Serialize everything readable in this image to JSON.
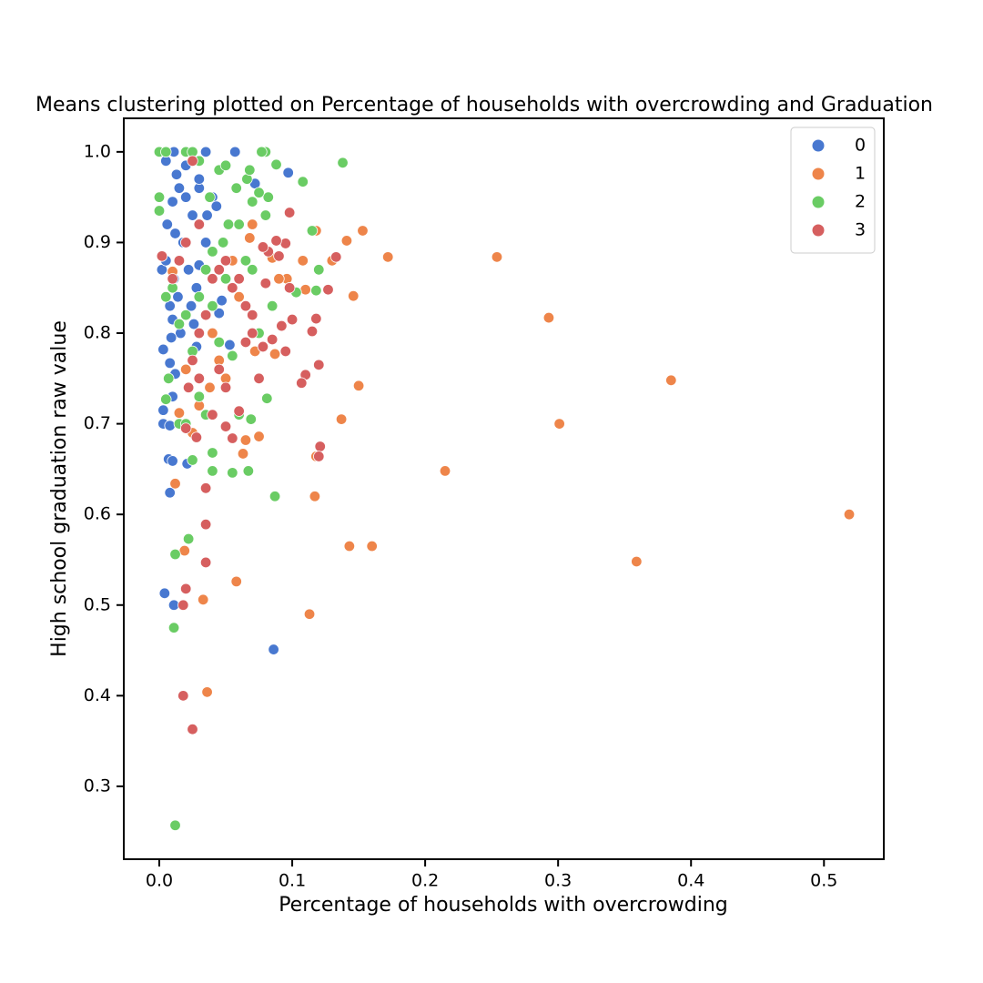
{
  "chart_data": {
    "type": "scatter",
    "title": "Means clustering plotted on Percentage of households with overcrowding and Graduation",
    "x_label": "Percentage of households with overcrowding",
    "y_label": "High school graduation raw value",
    "xlim": [
      -0.0267,
      0.545
    ],
    "ylim": [
      0.2196,
      1.037
    ],
    "xticks": [
      {
        "value": 0,
        "label": "0.0"
      },
      0.1,
      0.2,
      0.3,
      0.4,
      0.5
    ],
    "yticks": [
      0.3,
      0.4,
      0.5,
      0.6,
      0.7,
      0.8,
      0.9,
      {
        "value": 1,
        "label": "1.0"
      }
    ],
    "grid": false,
    "legend": "upper right",
    "series": [
      {
        "name": "0",
        "color": "#4878d0",
        "x": [
          0.097,
          0.057,
          0.035,
          0.011,
          0.003,
          0.003,
          0.008,
          0.007,
          0.01,
          0.021,
          0.008,
          0.004,
          0.011,
          0.086,
          0.053,
          0.047,
          0.045,
          0.072,
          0.002,
          0.005,
          0.01,
          0.003,
          0.02,
          0.015,
          0.01,
          0.025,
          0.03,
          0.04,
          0.006,
          0.012,
          0.018,
          0.022,
          0.028,
          0.014,
          0.008,
          0.01,
          0.016,
          0.009,
          0.026,
          0.035,
          0.03,
          0.02,
          0.005,
          0.013,
          0.036,
          0.043,
          0.011,
          0.03,
          0.008,
          0.012,
          0.028,
          0.024
        ],
        "values": [
          0.977,
          1.0,
          1.0,
          1.0,
          0.7,
          0.715,
          0.698,
          0.661,
          0.659,
          0.656,
          0.624,
          0.513,
          0.5,
          0.451,
          0.787,
          0.836,
          0.822,
          0.965,
          0.87,
          0.88,
          0.73,
          0.782,
          0.95,
          0.96,
          0.945,
          0.93,
          0.96,
          0.95,
          0.92,
          0.91,
          0.9,
          0.87,
          0.85,
          0.84,
          0.83,
          0.815,
          0.8,
          0.795,
          0.81,
          0.9,
          0.97,
          0.985,
          0.99,
          0.975,
          0.93,
          0.94,
          0.86,
          0.875,
          0.767,
          0.755,
          0.785,
          0.83
        ]
      },
      {
        "name": "1",
        "color": "#ee854a",
        "x": [
          0.519,
          0.385,
          0.359,
          0.301,
          0.293,
          0.254,
          0.215,
          0.172,
          0.16,
          0.153,
          0.15,
          0.146,
          0.143,
          0.141,
          0.137,
          0.117,
          0.118,
          0.113,
          0.13,
          0.118,
          0.108,
          0.096,
          0.087,
          0.075,
          0.063,
          0.058,
          0.036,
          0.033,
          0.019,
          0.012,
          0.065,
          0.07,
          0.068,
          0.055,
          0.045,
          0.05,
          0.038,
          0.03,
          0.025,
          0.015,
          0.06,
          0.072,
          0.085,
          0.04,
          0.02,
          0.01,
          0.11,
          0.09
        ],
        "values": [
          0.6,
          0.748,
          0.548,
          0.7,
          0.817,
          0.884,
          0.648,
          0.884,
          0.565,
          0.913,
          0.742,
          0.841,
          0.565,
          0.902,
          0.705,
          0.62,
          0.664,
          0.49,
          0.88,
          0.913,
          0.88,
          0.86,
          0.777,
          0.686,
          0.667,
          0.526,
          0.404,
          0.506,
          0.56,
          0.634,
          0.682,
          0.92,
          0.905,
          0.88,
          0.77,
          0.75,
          0.74,
          0.72,
          0.69,
          0.712,
          0.84,
          0.78,
          0.883,
          0.8,
          0.76,
          0.868,
          0.848,
          0.86
        ]
      },
      {
        "name": "2",
        "color": "#6acc64",
        "x": [
          0.012,
          0.011,
          0.012,
          0.022,
          0.087,
          0.055,
          0.067,
          0.04,
          0.04,
          0.138,
          0.108,
          0.08,
          0.077,
          0.088,
          0.082,
          0.081,
          0.069,
          0.118,
          0.12,
          0.115,
          0.103,
          0.085,
          0.075,
          0.06,
          0.025,
          0.0,
          0.005,
          0.02,
          0.025,
          0.03,
          0.045,
          0.05,
          0.058,
          0.066,
          0.068,
          0.07,
          0.075,
          0.08,
          0.06,
          0.065,
          0.07,
          0.05,
          0.04,
          0.035,
          0.03,
          0.02,
          0.01,
          0.005,
          0.0,
          0.0,
          0.007,
          0.005,
          0.015,
          0.02,
          0.03,
          0.035,
          0.045,
          0.055,
          0.04,
          0.025,
          0.015,
          0.048,
          0.052,
          0.038
        ],
        "values": [
          0.257,
          0.475,
          0.556,
          0.573,
          0.62,
          0.646,
          0.648,
          0.648,
          0.668,
          0.988,
          0.967,
          1.0,
          1.0,
          0.986,
          0.95,
          0.728,
          0.705,
          0.847,
          0.87,
          0.913,
          0.845,
          0.83,
          0.8,
          0.71,
          0.66,
          1.0,
          1.0,
          1.0,
          1.0,
          0.99,
          0.98,
          0.985,
          0.96,
          0.97,
          0.98,
          0.945,
          0.955,
          0.93,
          0.92,
          0.88,
          0.87,
          0.86,
          0.89,
          0.87,
          0.84,
          0.82,
          0.85,
          0.84,
          0.95,
          0.935,
          0.75,
          0.727,
          0.7,
          0.7,
          0.73,
          0.71,
          0.79,
          0.775,
          0.83,
          0.78,
          0.81,
          0.9,
          0.92,
          0.95
        ]
      },
      {
        "name": "3",
        "color": "#d65f5f",
        "x": [
          0.025,
          0.018,
          0.018,
          0.02,
          0.035,
          0.035,
          0.035,
          0.121,
          0.12,
          0.12,
          0.115,
          0.118,
          0.11,
          0.107,
          0.127,
          0.133,
          0.098,
          0.095,
          0.088,
          0.09,
          0.098,
          0.1,
          0.095,
          0.092,
          0.085,
          0.075,
          0.078,
          0.08,
          0.06,
          0.055,
          0.05,
          0.04,
          0.028,
          0.02,
          0.025,
          0.03,
          0.035,
          0.04,
          0.045,
          0.05,
          0.055,
          0.06,
          0.065,
          0.07,
          0.03,
          0.025,
          0.02,
          0.015,
          0.002,
          0.01,
          0.022,
          0.03,
          0.045,
          0.05,
          0.065,
          0.07,
          0.082,
          0.078
        ],
        "values": [
          0.363,
          0.4,
          0.5,
          0.518,
          0.547,
          0.589,
          0.629,
          0.675,
          0.664,
          0.765,
          0.802,
          0.816,
          0.754,
          0.745,
          0.848,
          0.884,
          0.933,
          0.899,
          0.902,
          0.885,
          0.85,
          0.815,
          0.78,
          0.808,
          0.793,
          0.75,
          0.785,
          0.855,
          0.714,
          0.684,
          0.697,
          0.71,
          0.685,
          0.695,
          0.77,
          0.8,
          0.82,
          0.86,
          0.87,
          0.88,
          0.85,
          0.86,
          0.83,
          0.82,
          0.92,
          0.99,
          0.9,
          0.88,
          0.885,
          0.86,
          0.74,
          0.75,
          0.76,
          0.74,
          0.79,
          0.8,
          0.89,
          0.895
        ]
      }
    ]
  }
}
